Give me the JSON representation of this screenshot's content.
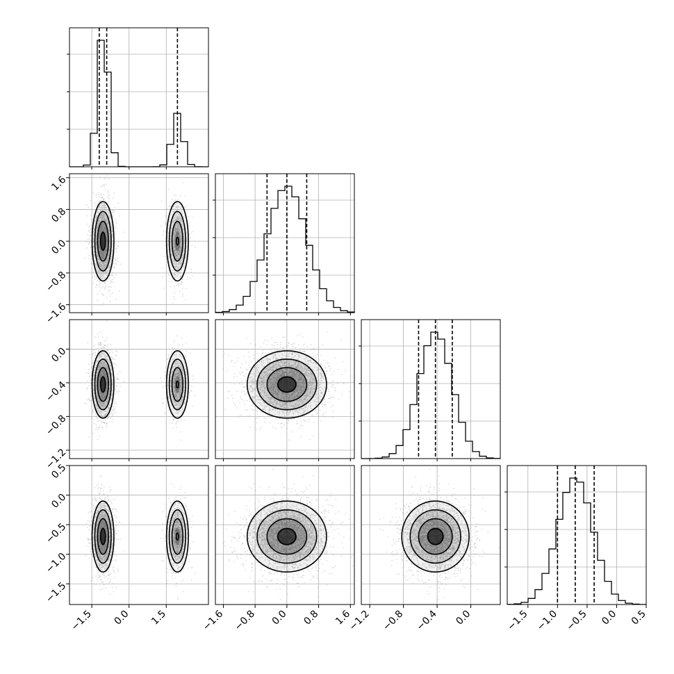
{
  "chart_data": {
    "type": "corner",
    "parameters": [
      {
        "range": [
          -2.4,
          3.2
        ],
        "ticks": [
          -1.5,
          0.0,
          1.5
        ],
        "tick_labels": [
          "−1.5",
          "0.0",
          "1.5"
        ],
        "quantiles": [
          -1.2,
          -0.9,
          1.95
        ],
        "modes": [
          {
            "mean": -1.05,
            "sd": 0.22,
            "weight": 0.72
          },
          {
            "mean": 1.95,
            "sd": 0.22,
            "weight": 0.28
          }
        ]
      },
      {
        "range": [
          -1.8,
          1.7
        ],
        "ticks": [
          -1.6,
          -0.8,
          0.0,
          0.8,
          1.6
        ],
        "tick_labels": [
          "−1.6",
          "−0.8",
          "0.0",
          "0.8",
          "1.6"
        ],
        "quantiles": [
          -0.5,
          0.0,
          0.5
        ],
        "modes": [
          {
            "mean": 0.0,
            "sd": 0.5,
            "weight": 1.0
          }
        ]
      },
      {
        "range": [
          -1.3,
          0.35
        ],
        "ticks": [
          -1.2,
          -0.8,
          -0.4,
          0.0
        ],
        "tick_labels": [
          "−1.2",
          "−0.8",
          "−0.4",
          "0.0"
        ],
        "quantiles": [
          -0.62,
          -0.42,
          -0.22
        ],
        "modes": [
          {
            "mean": -0.42,
            "sd": 0.2,
            "weight": 1.0
          }
        ]
      },
      {
        "range": [
          -1.85,
          0.5
        ],
        "ticks": [
          -1.5,
          -1.0,
          -0.5,
          0.0,
          0.5
        ],
        "tick_labels": [
          "−1.5",
          "−1.0",
          "−0.5",
          "0.0",
          "0.5"
        ],
        "quantiles": [
          -1.0,
          -0.7,
          -0.38
        ],
        "modes": [
          {
            "mean": -0.7,
            "sd": 0.3,
            "weight": 1.0
          }
        ]
      }
    ],
    "hist_bins": 20,
    "scatter_points": 2500,
    "colors": {
      "density": "#000000",
      "scatter": "#bdbdbd",
      "grid": "#b0b0b0"
    }
  }
}
